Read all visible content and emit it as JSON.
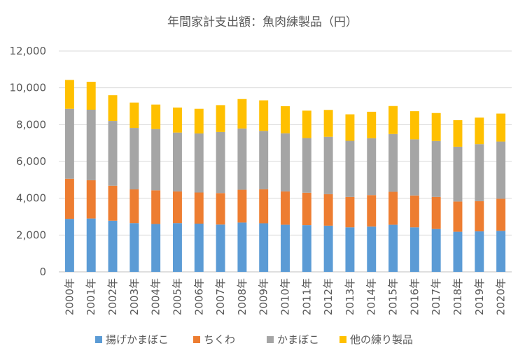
{
  "chart_data": {
    "type": "bar",
    "stacked": true,
    "title": "年間家計支出額：魚肉練製品（円）",
    "xlabel": "",
    "ylabel": "",
    "ylim": [
      0,
      12000
    ],
    "yticks": [
      "0",
      "2,000",
      "4,000",
      "6,000",
      "8,000",
      "10,000",
      "12,000"
    ],
    "grid": true,
    "legend_position": "bottom",
    "categories": [
      "2000年",
      "2001年",
      "2002年",
      "2003年",
      "2004年",
      "2005年",
      "2006年",
      "2007年",
      "2008年",
      "2009年",
      "2010年",
      "2011年",
      "2012年",
      "2013年",
      "2014年",
      "2015年",
      "2016年",
      "2017年",
      "2018年",
      "2019年",
      "2020年"
    ],
    "series": [
      {
        "name": "揚げかまぼこ",
        "color": "#5B9BD5",
        "values": [
          2880,
          2900,
          2780,
          2650,
          2600,
          2650,
          2620,
          2570,
          2680,
          2640,
          2560,
          2540,
          2510,
          2420,
          2460,
          2560,
          2420,
          2330,
          2180,
          2200,
          2230
        ]
      },
      {
        "name": "ちくわ",
        "color": "#ED7D31",
        "values": [
          2180,
          2080,
          1900,
          1830,
          1830,
          1720,
          1690,
          1710,
          1780,
          1850,
          1810,
          1760,
          1710,
          1650,
          1710,
          1790,
          1730,
          1740,
          1640,
          1640,
          1740
        ]
      },
      {
        "name": "かまぼこ",
        "color": "#A5A5A5",
        "values": [
          3800,
          3830,
          3520,
          3340,
          3330,
          3200,
          3210,
          3320,
          3330,
          3170,
          3160,
          2970,
          3120,
          3050,
          3090,
          3140,
          3050,
          3040,
          2980,
          3100,
          3110
        ]
      },
      {
        "name": "他の練り製品",
        "color": "#FFC000",
        "values": [
          1570,
          1520,
          1400,
          1380,
          1330,
          1360,
          1340,
          1460,
          1600,
          1660,
          1470,
          1490,
          1460,
          1440,
          1440,
          1520,
          1530,
          1520,
          1440,
          1440,
          1520
        ]
      }
    ]
  }
}
